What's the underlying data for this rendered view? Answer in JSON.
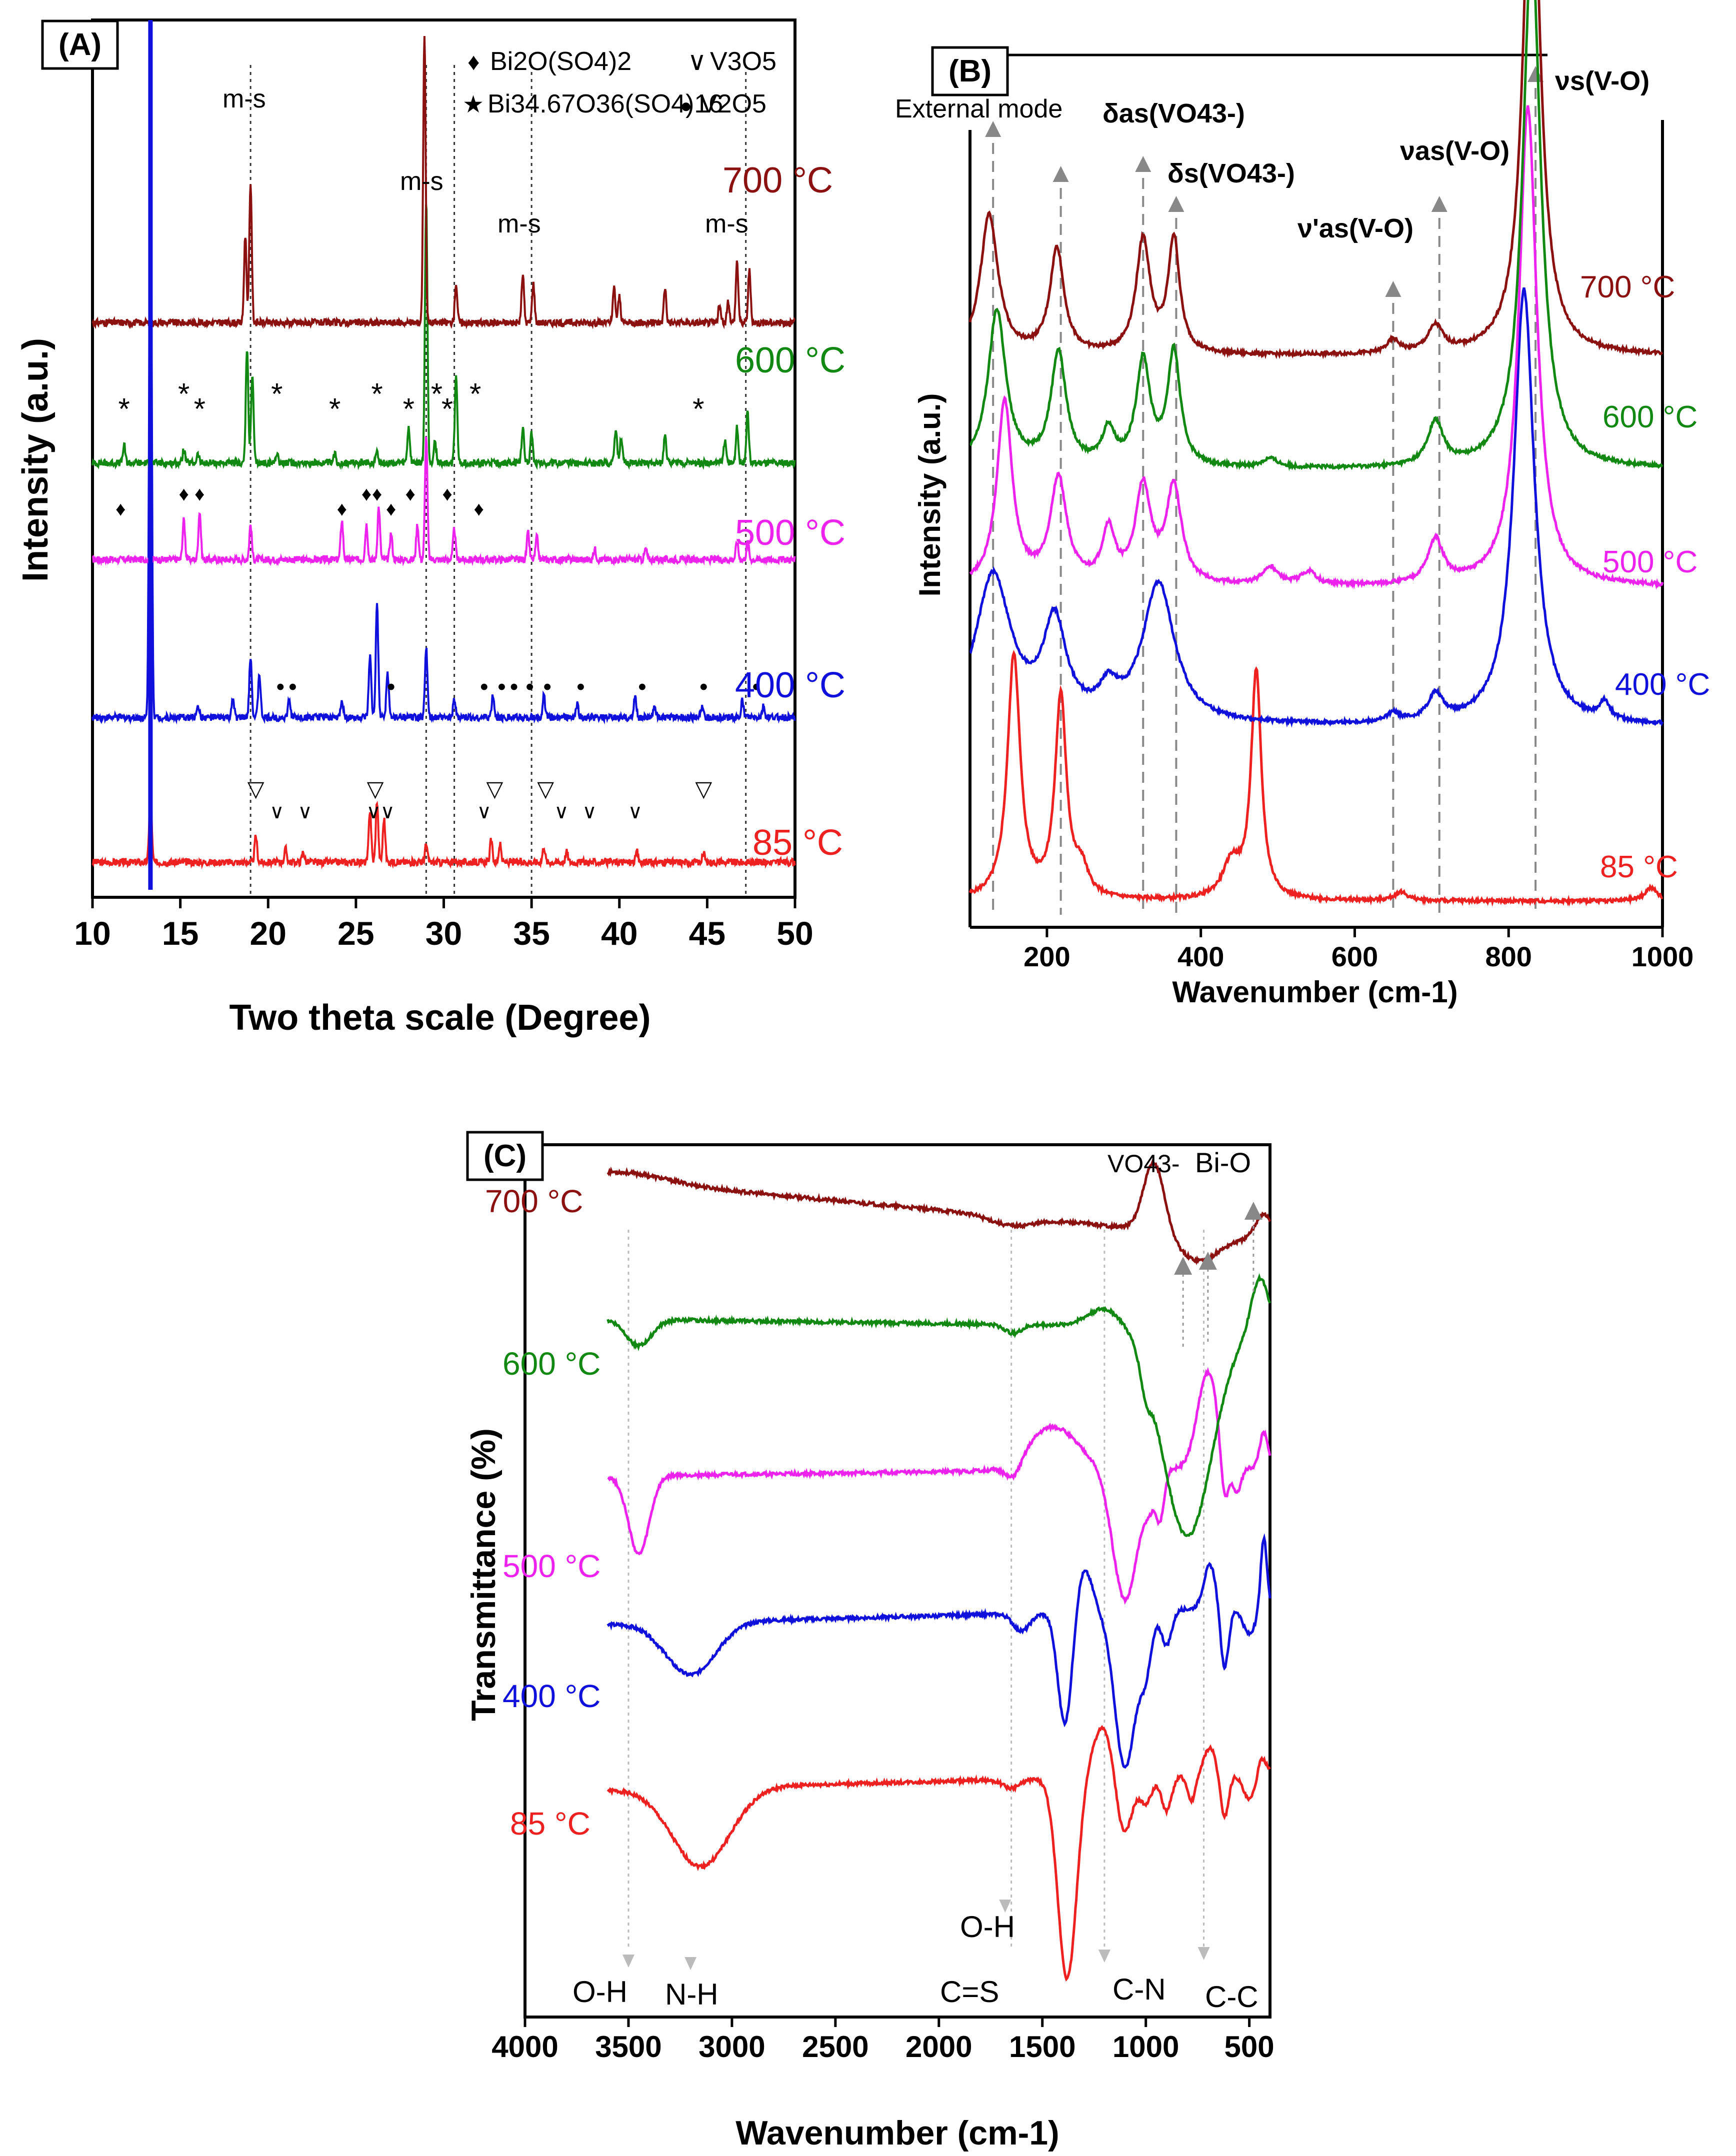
{
  "colors": {
    "c85": "#ee2020",
    "c400": "#1010dd",
    "c500": "#ee22ee",
    "c600": "#118811",
    "c700": "#8b1010",
    "axis": "#000000",
    "guide": "#888888"
  },
  "chart_data": [
    {
      "panel": "(A)",
      "type": "line",
      "xlabel": "Two theta scale (Degree)",
      "ylabel": "Intensity (a.u.)",
      "xlim": [
        10,
        50
      ],
      "xticks": [
        10,
        15,
        20,
        25,
        30,
        35,
        40,
        45,
        50
      ],
      "series": [
        {
          "name": "85 °C",
          "color_key": "c85",
          "base": 0.04,
          "peaks": [
            [
              13.3,
              0.085
            ],
            [
              19.3,
              0.03
            ],
            [
              21.0,
              0.015
            ],
            [
              22.0,
              0.012
            ],
            [
              25.8,
              0.06
            ],
            [
              26.2,
              0.07
            ],
            [
              26.6,
              0.05
            ],
            [
              29.0,
              0.02
            ],
            [
              32.7,
              0.025
            ],
            [
              33.2,
              0.02
            ],
            [
              35.7,
              0.018
            ],
            [
              37.0,
              0.012
            ],
            [
              41.0,
              0.012
            ],
            [
              44.8,
              0.01
            ]
          ]
        },
        {
          "name": "400 °C",
          "color_key": "c400",
          "base": 0.205,
          "peaks": [
            [
              13.3,
              0.7
            ],
            [
              16.0,
              0.015
            ],
            [
              18.0,
              0.02
            ],
            [
              19.0,
              0.07
            ],
            [
              19.5,
              0.05
            ],
            [
              21.2,
              0.02
            ],
            [
              24.2,
              0.02
            ],
            [
              25.8,
              0.07
            ],
            [
              26.2,
              0.13
            ],
            [
              26.8,
              0.05
            ],
            [
              29.0,
              0.08
            ],
            [
              30.6,
              0.02
            ],
            [
              32.8,
              0.025
            ],
            [
              35.7,
              0.025
            ],
            [
              37.6,
              0.015
            ],
            [
              40.9,
              0.025
            ],
            [
              42.0,
              0.015
            ],
            [
              44.7,
              0.012
            ],
            [
              47.0,
              0.02
            ],
            [
              48.2,
              0.012
            ]
          ]
        },
        {
          "name": "500 °C",
          "color_key": "c500",
          "base": 0.385,
          "peaks": [
            [
              15.2,
              0.045
            ],
            [
              16.1,
              0.055
            ],
            [
              19.0,
              0.04
            ],
            [
              24.2,
              0.045
            ],
            [
              25.6,
              0.04
            ],
            [
              26.3,
              0.06
            ],
            [
              27.0,
              0.03
            ],
            [
              28.5,
              0.04
            ],
            [
              29.0,
              0.14
            ],
            [
              30.6,
              0.035
            ],
            [
              34.8,
              0.03
            ],
            [
              35.3,
              0.025
            ],
            [
              38.6,
              0.012
            ],
            [
              41.5,
              0.012
            ],
            [
              46.7,
              0.02
            ],
            [
              47.3,
              0.02
            ]
          ]
        },
        {
          "name": "600 °C",
          "color_key": "c600",
          "base": 0.495,
          "peaks": [
            [
              11.8,
              0.02
            ],
            [
              15.2,
              0.015
            ],
            [
              16.0,
              0.01
            ],
            [
              18.8,
              0.13
            ],
            [
              19.1,
              0.1
            ],
            [
              20.5,
              0.012
            ],
            [
              23.8,
              0.01
            ],
            [
              26.2,
              0.015
            ],
            [
              28.0,
              0.04
            ],
            [
              29.0,
              0.3
            ],
            [
              29.5,
              0.025
            ],
            [
              30.7,
              0.1
            ],
            [
              34.5,
              0.04
            ],
            [
              35.0,
              0.035
            ],
            [
              39.8,
              0.04
            ],
            [
              40.1,
              0.03
            ],
            [
              42.6,
              0.035
            ],
            [
              46.0,
              0.025
            ],
            [
              46.7,
              0.04
            ],
            [
              47.3,
              0.06
            ]
          ]
        },
        {
          "name": "700 °C",
          "color_key": "c700",
          "base": 0.655,
          "peaks": [
            [
              18.7,
              0.1
            ],
            [
              19.0,
              0.16
            ],
            [
              28.9,
              0.33
            ],
            [
              30.7,
              0.045
            ],
            [
              34.5,
              0.055
            ],
            [
              35.1,
              0.045
            ],
            [
              39.7,
              0.04
            ],
            [
              40.0,
              0.03
            ],
            [
              42.6,
              0.04
            ],
            [
              45.7,
              0.02
            ],
            [
              46.2,
              0.025
            ],
            [
              46.7,
              0.07
            ],
            [
              47.4,
              0.06
            ]
          ]
        }
      ],
      "guide_lines_x": [
        19.0,
        29.0,
        30.6,
        35.0,
        47.2
      ],
      "annotations": {
        "ms1": "m-s",
        "ms2": "m-s",
        "ms3": "m-s",
        "ms4": "m-s",
        "legend_bi2o_sym": "♦",
        "legend_bi2o": "Bi2O(SO4)2",
        "legend_v3o5_sym": "∨",
        "legend_v3o5": "V3O5",
        "legend_bi34_sym": "★",
        "legend_bi34": "Bi34.67O36(SO4)16",
        "legend_v2o5_sym": "●",
        "legend_v2o5": "V2O5",
        "marker_diamond": "♦",
        "marker_star": "*",
        "marker_dot": "●",
        "marker_tri": "▽",
        "marker_v": "∨"
      },
      "marker_positions": {
        "stars_600": [
          11.8,
          15.2,
          16.1,
          20.5,
          23.8,
          26.2,
          28.0,
          29.6,
          30.2,
          31.8,
          44.5
        ],
        "diamonds_500": [
          11.6,
          15.2,
          16.1,
          24.2,
          25.6,
          26.2,
          27.0,
          28.1,
          30.2,
          32.0
        ],
        "dots_400": [
          20.7,
          21.4,
          27.0,
          32.3,
          33.3,
          34.0,
          34.9,
          35.9,
          37.8,
          41.3,
          44.8,
          47.8
        ],
        "tri_85": [
          19.3,
          26.1,
          32.9,
          35.8,
          44.8
        ],
        "v_85": [
          20.5,
          22.1,
          26.0,
          26.8,
          32.3,
          36.7,
          38.3,
          40.9
        ]
      }
    },
    {
      "panel": "(B)",
      "type": "line",
      "xlabel": "Wavenumber (cm-1)",
      "ylabel": "Intensity (a.u.)",
      "xlim": [
        100,
        1000
      ],
      "xticks": [
        200,
        400,
        600,
        800,
        1000
      ],
      "series": [
        {
          "name": "85 °C",
          "color_key": "c85",
          "base": 0.03,
          "peaks": [
            [
              157,
              0.28,
              10
            ],
            [
              218,
              0.23,
              9
            ],
            [
              245,
              0.03,
              10
            ],
            [
              440,
              0.04,
              14
            ],
            [
              472,
              0.26,
              8
            ],
            [
              660,
              0.01,
              10
            ],
            [
              985,
              0.015,
              10
            ]
          ]
        },
        {
          "name": "400 °C",
          "color_key": "c400",
          "base": 0.23,
          "peaks": [
            [
              130,
              0.17,
              28
            ],
            [
              210,
              0.11,
              18
            ],
            [
              280,
              0.03,
              14
            ],
            [
              345,
              0.16,
              25
            ],
            [
              650,
              0.01,
              10
            ],
            [
              705,
              0.03,
              12
            ],
            [
              820,
              0.5,
              16
            ],
            [
              925,
              0.02,
              8
            ]
          ]
        },
        {
          "name": "500 °C",
          "color_key": "c500",
          "base": 0.39,
          "peaks": [
            [
              145,
              0.21,
              12
            ],
            [
              215,
              0.12,
              13
            ],
            [
              280,
              0.06,
              10
            ],
            [
              325,
              0.11,
              12
            ],
            [
              365,
              0.11,
              12
            ],
            [
              490,
              0.02,
              12
            ],
            [
              540,
              0.015,
              12
            ],
            [
              705,
              0.05,
              12
            ],
            [
              825,
              0.55,
              14
            ]
          ]
        },
        {
          "name": "600 °C",
          "color_key": "c600",
          "base": 0.525,
          "peaks": [
            [
              135,
              0.18,
              14
            ],
            [
              215,
              0.13,
              12
            ],
            [
              280,
              0.04,
              10
            ],
            [
              325,
              0.12,
              11
            ],
            [
              365,
              0.13,
              10
            ],
            [
              490,
              0.01,
              12
            ],
            [
              705,
              0.05,
              12
            ],
            [
              830,
              0.6,
              14
            ]
          ]
        },
        {
          "name": "700 °C",
          "color_key": "c700",
          "base": 0.655,
          "peaks": [
            [
              125,
              0.16,
              14
            ],
            [
              213,
              0.12,
              11
            ],
            [
              325,
              0.13,
              11
            ],
            [
              365,
              0.13,
              9
            ],
            [
              650,
              0.015,
              10
            ],
            [
              705,
              0.03,
              12
            ],
            [
              830,
              0.62,
              13
            ]
          ]
        }
      ],
      "guide_lines_x": [
        130,
        218,
        325,
        368,
        650,
        710,
        835
      ],
      "annotations": {
        "external_mode": "External mode",
        "delta_as": "δas(VO43-)",
        "delta_s": "δs(VO43-)",
        "nu_as_prime": "ν'as(V-O)",
        "nu_as": "νas(V-O)",
        "nu_s": "νs(V-O)"
      }
    },
    {
      "panel": "(C)",
      "type": "line",
      "xlabel": "Wavenumber (cm-1)",
      "ylabel": "Transmittance (%)",
      "xlim": [
        4000,
        400
      ],
      "xticks": [
        4000,
        3500,
        3000,
        2500,
        2000,
        1500,
        1000,
        500
      ],
      "series": [
        {
          "name": "85 °C",
          "color_key": "c85",
          "start": 3600,
          "base": 0.26,
          "tilt": 0.02,
          "features": [
            [
              3150,
              -0.09,
              140
            ],
            [
              1650,
              -0.01,
              40
            ],
            [
              1380,
              -0.23,
              45
            ],
            [
              1200,
              0.06,
              60
            ],
            [
              1110,
              -0.08,
              40
            ],
            [
              1000,
              -0.03,
              30
            ],
            [
              900,
              -0.04,
              25
            ],
            [
              780,
              -0.03,
              20
            ],
            [
              690,
              0.03,
              30
            ],
            [
              620,
              -0.05,
              20
            ],
            [
              500,
              -0.03,
              30
            ],
            [
              440,
              0.02,
              20
            ]
          ]
        },
        {
          "name": "400 °C",
          "color_key": "c400",
          "start": 3600,
          "base": 0.45,
          "tilt": 0.02,
          "features": [
            [
              3200,
              -0.06,
              120
            ],
            [
              1600,
              -0.02,
              40
            ],
            [
              1390,
              -0.13,
              35
            ],
            [
              1300,
              0.05,
              40
            ],
            [
              1100,
              -0.18,
              50
            ],
            [
              1000,
              -0.06,
              30
            ],
            [
              900,
              -0.04,
              25
            ],
            [
              690,
              0.05,
              30
            ],
            [
              620,
              -0.07,
              20
            ],
            [
              500,
              -0.03,
              30
            ],
            [
              430,
              0.08,
              15
            ]
          ]
        },
        {
          "name": "500 °C",
          "color_key": "c500",
          "start": 3600,
          "base": 0.62,
          "tilt": 0.01,
          "features": [
            [
              3450,
              -0.09,
              50
            ],
            [
              1640,
              -0.02,
              40
            ],
            [
              1450,
              0.05,
              120
            ],
            [
              1100,
              -0.15,
              60
            ],
            [
              980,
              -0.03,
              30
            ],
            [
              930,
              -0.05,
              20
            ],
            [
              700,
              0.11,
              50
            ],
            [
              620,
              -0.06,
              20
            ],
            [
              560,
              -0.03,
              20
            ],
            [
              430,
              0.04,
              20
            ]
          ]
        },
        {
          "name": "600 °C",
          "color_key": "c600",
          "start": 3600,
          "base": 0.8,
          "tilt": -0.01,
          "features": [
            [
              3450,
              -0.03,
              60
            ],
            [
              1640,
              -0.01,
              40
            ],
            [
              1200,
              0.02,
              80
            ],
            [
              1000,
              -0.03,
              25
            ],
            [
              800,
              -0.24,
              120
            ],
            [
              450,
              0.06,
              40
            ]
          ]
        },
        {
          "name": "700 °C",
          "color_key": "c700",
          "start": 3600,
          "base": 0.96,
          "tilt": -0.07,
          "features": [
            [
              3500,
              0.01,
              200
            ],
            [
              1650,
              -0.01,
              100
            ],
            [
              960,
              0.08,
              50
            ],
            [
              750,
              -0.03,
              100
            ],
            [
              430,
              0.03,
              40
            ]
          ]
        }
      ],
      "guide_lines_x": [
        3500,
        1650,
        1200,
        720
      ],
      "annotations": {
        "vo4": "VO43-",
        "bio": "Bi-O",
        "oh1": "O-H",
        "nh": "N-H",
        "oh2": "O-H",
        "cs": "C=S",
        "cn": "C-N",
        "cc": "C-C"
      }
    }
  ]
}
